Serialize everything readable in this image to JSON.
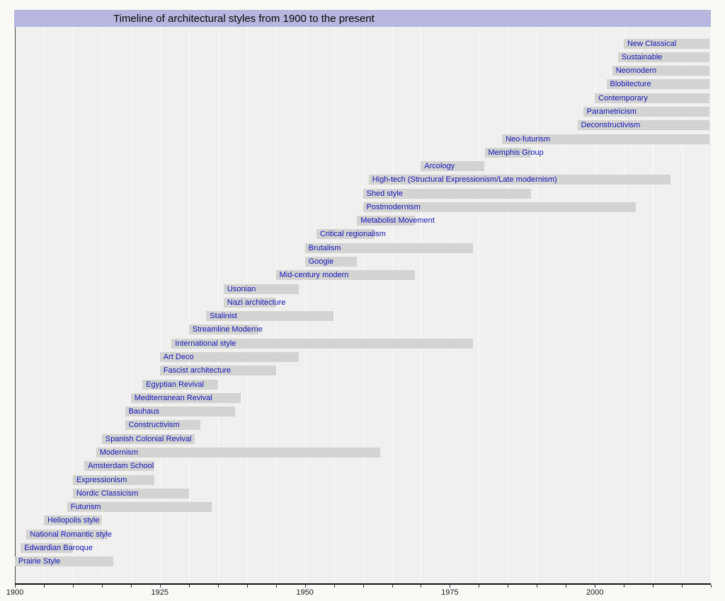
{
  "title": "Timeline of architectural styles from 1900 to the present",
  "colors": {
    "page_bg": "#f9f9f6",
    "title_bar_bg": "#b6b6de",
    "title_text": "#0a0a0a",
    "plot_bg": "#f0f0ee",
    "grid_line": "#fafaf9",
    "bar": "#d3d3d1",
    "label_text": "#1414b8",
    "axis": "#141414"
  },
  "chart_data": {
    "type": "timeline",
    "title": "Timeline of architectural styles from 1900 to the present",
    "x_axis": {
      "min": 1900,
      "max": 2020,
      "tick_labels": [
        "1900",
        "1925",
        "1950",
        "1975",
        "2000"
      ],
      "minor_tick_step_years": 5,
      "grid": true
    },
    "present_year": 2020,
    "legend": "none",
    "styles": [
      {
        "label": "New Classical",
        "start": 2005,
        "end": "present"
      },
      {
        "label": "Sustainable",
        "start": 2004,
        "end": "present"
      },
      {
        "label": "Neomodern",
        "start": 2003,
        "end": "present"
      },
      {
        "label": "Blobitecture",
        "start": 2002,
        "end": "present"
      },
      {
        "label": "Contemporary",
        "start": 2000,
        "end": "present"
      },
      {
        "label": "Parametricism",
        "start": 1998,
        "end": "present"
      },
      {
        "label": "Deconstructivism",
        "start": 1997,
        "end": "present"
      },
      {
        "label": "Neo-futurism",
        "start": 1984,
        "end": "present"
      },
      {
        "label": "Memphis Group",
        "start": 1981,
        "end": 1989
      },
      {
        "label": "Arcology",
        "start": 1970,
        "end": 1981
      },
      {
        "label": "High-tech (Structural Expressionism/Late modernism)",
        "start": 1961,
        "end": 2013
      },
      {
        "label": "Shed style",
        "start": 1960,
        "end": 1989
      },
      {
        "label": "Postmodernism",
        "start": 1960,
        "end": 2007
      },
      {
        "label": "Metabolist Movement",
        "start": 1959,
        "end": 1969
      },
      {
        "label": "Critical regionalism",
        "start": 1952,
        "end": 1962
      },
      {
        "label": "Brutalism",
        "start": 1950,
        "end": 1979
      },
      {
        "label": "Googie",
        "start": 1950,
        "end": 1959
      },
      {
        "label": "Mid-century modern",
        "start": 1945,
        "end": 1969
      },
      {
        "label": "Usonian",
        "start": 1936,
        "end": 1949
      },
      {
        "label": "Nazi architecture",
        "start": 1936,
        "end": 1945
      },
      {
        "label": "Stalinist",
        "start": 1933,
        "end": 1955
      },
      {
        "label": "Streamline Moderne",
        "start": 1930,
        "end": 1942
      },
      {
        "label": "International style",
        "start": 1927,
        "end": 1979
      },
      {
        "label": "Art Deco",
        "start": 1925,
        "end": 1949
      },
      {
        "label": "Fascist architecture",
        "start": 1925,
        "end": 1945
      },
      {
        "label": "Egyptian Revival",
        "start": 1922,
        "end": 1935
      },
      {
        "label": "Mediterranean Revival",
        "start": 1920,
        "end": 1939
      },
      {
        "label": "Bauhaus",
        "start": 1919,
        "end": 1938
      },
      {
        "label": "Constructivism",
        "start": 1919,
        "end": 1932
      },
      {
        "label": "Spanish Colonial Revival",
        "start": 1915,
        "end": 1931
      },
      {
        "label": "Modernism",
        "start": 1914,
        "end": 1963
      },
      {
        "label": "Amsterdam School",
        "start": 1912,
        "end": 1924
      },
      {
        "label": "Expressionism",
        "start": 1910,
        "end": 1924
      },
      {
        "label": "Nordic Classicism",
        "start": 1910,
        "end": 1930
      },
      {
        "label": "Futurism",
        "start": 1909,
        "end": 1934
      },
      {
        "label": "Heliopolis style",
        "start": 1905,
        "end": 1915
      },
      {
        "label": "National Romantic style",
        "start": 1902,
        "end": 1916
      },
      {
        "label": "Edwardian Baroque",
        "start": 1901,
        "end": 1910
      },
      {
        "label": "Prairie Style",
        "start": 1900,
        "end": 1917
      }
    ]
  }
}
